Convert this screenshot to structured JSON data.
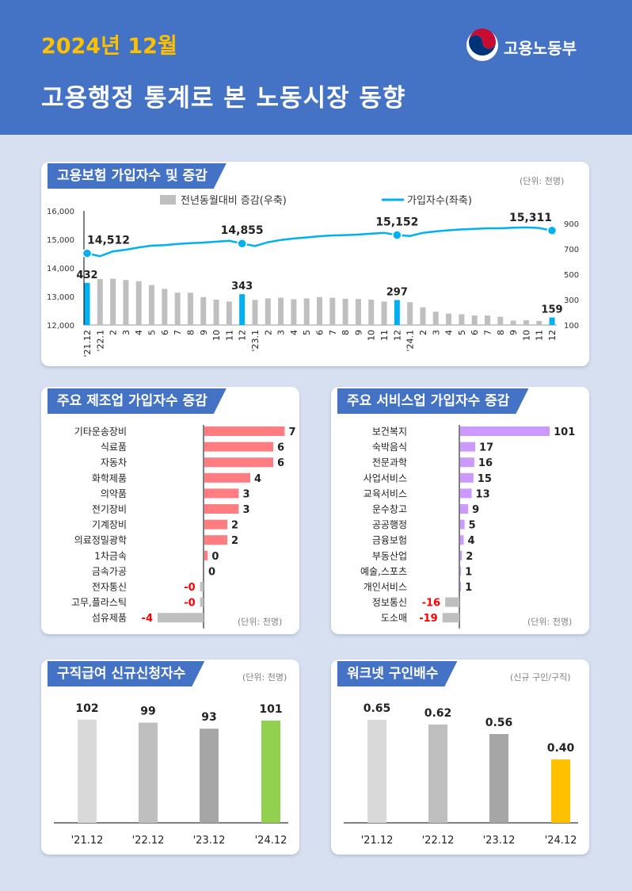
{
  "header": {
    "date": "2024년 12월",
    "title": "고용행정 통계로 본 노동시장 동향"
  },
  "logo": {
    "name": "고용노동부"
  },
  "insurance": {
    "title": "고용보험 가입자수 및 증감",
    "unit": "(단위: 천명)",
    "legend_bar": "전년동월대비 증감(우축)",
    "legend_line": "가입자수(좌축)",
    "colors": {
      "bar": "#bfbfbf",
      "highlight": "#00b0f0",
      "line": "#00b0f0"
    },
    "chart_data": {
      "type": "bar",
      "categories": [
        "'21.12",
        "'22.1",
        "2",
        "3",
        "4",
        "5",
        "6",
        "7",
        "8",
        "9",
        "10",
        "11",
        "12",
        "'23.1",
        "2",
        "3",
        "4",
        "5",
        "6",
        "7",
        "8",
        "9",
        "10",
        "11",
        "12",
        "'24.1",
        "2",
        "3",
        "4",
        "5",
        "6",
        "7",
        "8",
        "9",
        "10",
        "11",
        "12"
      ],
      "series": [
        {
          "name": "전년동월대비 증감(우축)",
          "axis": "right",
          "values": [
            432,
            462,
            465,
            455,
            445,
            415,
            385,
            355,
            355,
            320,
            300,
            285,
            343,
            298,
            310,
            315,
            303,
            310,
            320,
            315,
            307,
            305,
            300,
            285,
            297,
            280,
            240,
            205,
            190,
            185,
            175,
            175,
            165,
            135,
            138,
            132,
            159
          ]
        },
        {
          "name": "가입자수(좌축)",
          "axis": "left",
          "values": [
            14512,
            14410,
            14580,
            14640,
            14720,
            14780,
            14800,
            14840,
            14870,
            14890,
            14920,
            14950,
            14855,
            14770,
            14900,
            14980,
            15030,
            15070,
            15110,
            15140,
            15150,
            15170,
            15200,
            15230,
            15152,
            15120,
            15230,
            15280,
            15320,
            15350,
            15370,
            15390,
            15390,
            15410,
            15420,
            15400,
            15311
          ]
        }
      ],
      "highlight_indices": [
        0,
        12,
        24,
        36
      ],
      "bar_labels": [
        {
          "index": 0,
          "label": "432"
        },
        {
          "index": 12,
          "label": "343"
        },
        {
          "index": 24,
          "label": "297"
        },
        {
          "index": 36,
          "label": "159"
        }
      ],
      "line_labels": [
        {
          "index": 0,
          "label": "14,512"
        },
        {
          "index": 12,
          "label": "14,855"
        },
        {
          "index": 24,
          "label": "15,152"
        },
        {
          "index": 36,
          "label": "15,311"
        }
      ],
      "ylim_left": [
        12000,
        16000
      ],
      "yticks_left": [
        "12,000",
        "13,000",
        "14,000",
        "15,000",
        "16,000"
      ],
      "ylim_right": [
        100,
        1000
      ],
      "yticks_right": [
        "100",
        "300",
        "500",
        "700",
        "900"
      ]
    }
  },
  "manufacturing": {
    "title": "주요 제조업 가입자수 증감",
    "unit": "(단위: 천명)",
    "colors": {
      "pos": "#ff7c80",
      "neg": "#bfbfbf",
      "neg_label": "#ff0000"
    },
    "chart_data": {
      "type": "bar",
      "orientation": "horizontal",
      "categories": [
        "기타운송장비",
        "식료품",
        "자동차",
        "화학제품",
        "의약품",
        "전기장비",
        "기계장비",
        "의료정밀광학",
        "1차금속",
        "금속가공",
        "전자통신",
        "고무,플라스틱",
        "섬유제품"
      ],
      "values": [
        7,
        6,
        6,
        4,
        3,
        3,
        2,
        2,
        0.3,
        0,
        -0.3,
        -0.3,
        -4
      ],
      "labels": [
        "7",
        "6",
        "6",
        "4",
        "3",
        "3",
        "2",
        "2",
        "0",
        "0",
        "-0",
        "-0",
        "-4"
      ]
    }
  },
  "services": {
    "title": "주요 서비스업 가입자수 증감",
    "unit": "(단위: 천명)",
    "colors": {
      "pos": "#cc99ff",
      "neg": "#bfbfbf",
      "neg_label": "#ff0000"
    },
    "chart_data": {
      "type": "bar",
      "orientation": "horizontal",
      "categories": [
        "보건복지",
        "숙박음식",
        "전문과학",
        "사업서비스",
        "교육서비스",
        "운수창고",
        "공공행정",
        "금융보험",
        "부동산업",
        "예술,스포츠",
        "개인서비스",
        "정보통신",
        "도소매"
      ],
      "values": [
        101,
        17,
        16,
        15,
        13,
        9,
        5,
        4,
        2,
        1,
        1,
        -16,
        -19
      ],
      "labels": [
        "101",
        "17",
        "16",
        "15",
        "13",
        "9",
        "5",
        "4",
        "2",
        "1",
        "1",
        "-16",
        "-19"
      ]
    }
  },
  "claims": {
    "title": "구직급여 신규신청자수",
    "unit": "(단위: 천명)",
    "chart_data": {
      "type": "bar",
      "categories": [
        "'21.12",
        "'22.12",
        "'23.12",
        "'24.12"
      ],
      "values": [
        102,
        99,
        93,
        101
      ],
      "labels": [
        "102",
        "99",
        "93",
        "101"
      ],
      "colors": [
        "#d9d9d9",
        "#bfbfbf",
        "#a6a6a6",
        "#92d050"
      ],
      "ylim": [
        0,
        130
      ]
    }
  },
  "worknet": {
    "title": "워크넷 구인배수",
    "unit": "(신규 구인/구직)",
    "chart_data": {
      "type": "bar",
      "categories": [
        "'21.12",
        "'22.12",
        "'23.12",
        "'24.12"
      ],
      "values": [
        0.65,
        0.62,
        0.56,
        0.4
      ],
      "labels": [
        "0.65",
        "0.62",
        "0.56",
        "0.40"
      ],
      "colors": [
        "#d9d9d9",
        "#bfbfbf",
        "#a6a6a6",
        "#ffc000"
      ],
      "ylim": [
        0,
        0.83
      ]
    }
  }
}
